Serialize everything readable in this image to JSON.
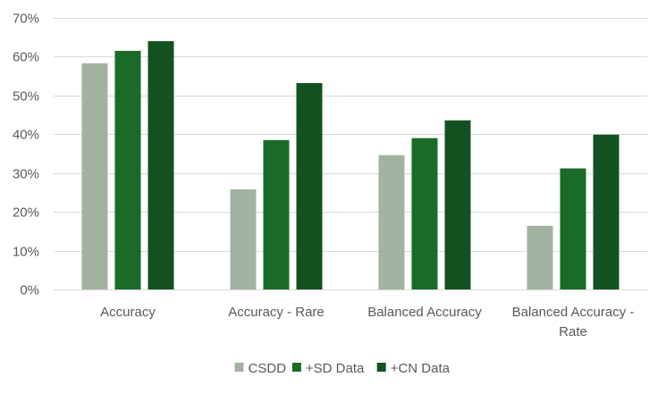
{
  "chart_data": {
    "type": "bar",
    "categories": [
      [
        "Accuracy"
      ],
      [
        "Accuracy - Rare"
      ],
      [
        "Balanced Accuracy"
      ],
      [
        "Balanced Accuracy -",
        "Rate"
      ]
    ],
    "series": [
      {
        "name": "CSDD",
        "color": "#a2b2a0",
        "values": [
          58.3,
          25.8,
          34.6,
          16.4
        ]
      },
      {
        "name": "+SD Data",
        "color": "#1a6b28",
        "values": [
          61.5,
          38.5,
          39.0,
          31.2
        ]
      },
      {
        "name": "+CN Data",
        "color": "#135220",
        "values": [
          64.0,
          53.2,
          43.6,
          39.9
        ]
      }
    ],
    "yticks": [
      "0%",
      "10%",
      "20%",
      "30%",
      "40%",
      "50%",
      "60%",
      "70%"
    ],
    "ylim": [
      0,
      70
    ],
    "grid": true,
    "legend_position": "bottom-center"
  }
}
